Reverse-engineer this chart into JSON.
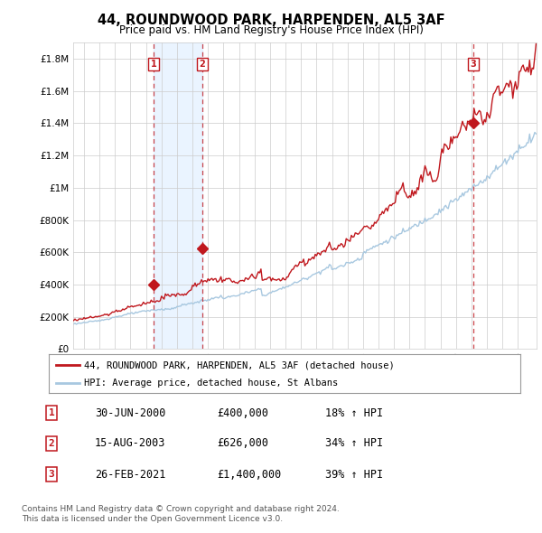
{
  "title": "44, ROUNDWOOD PARK, HARPENDEN, AL5 3AF",
  "subtitle": "Price paid vs. HM Land Registry's House Price Index (HPI)",
  "ytick_values": [
    0,
    200000,
    400000,
    600000,
    800000,
    1000000,
    1200000,
    1400000,
    1600000,
    1800000
  ],
  "ylim": [
    0,
    1900000
  ],
  "xlim_start": 1995.3,
  "xlim_end": 2025.2,
  "legend_line1": "44, ROUNDWOOD PARK, HARPENDEN, AL5 3AF (detached house)",
  "legend_line2": "HPI: Average price, detached house, St Albans",
  "sale1_date": 2000.49,
  "sale1_price": 400000,
  "sale1_label": "1",
  "sale2_date": 2003.62,
  "sale2_price": 626000,
  "sale2_label": "2",
  "sale3_date": 2021.12,
  "sale3_price": 1400000,
  "sale3_label": "3",
  "footer1": "Contains HM Land Registry data © Crown copyright and database right 2024.",
  "footer2": "This data is licensed under the Open Government Licence v3.0.",
  "red_color": "#c0181e",
  "blue_color": "#a8c8e0",
  "background_color": "#ffffff",
  "grid_color": "#cccccc",
  "shade_color": "#ddeeff"
}
